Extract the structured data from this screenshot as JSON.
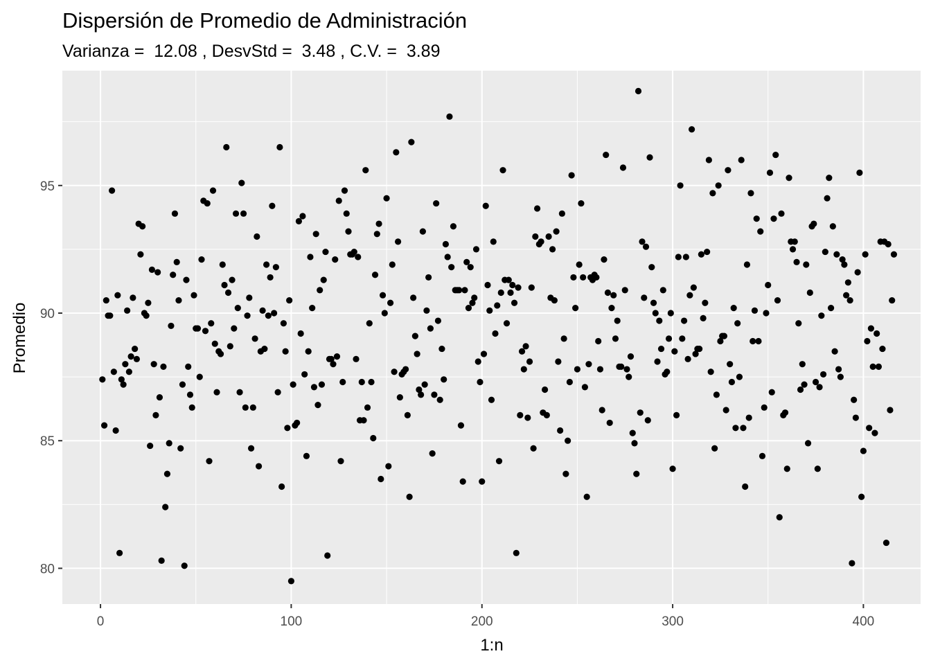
{
  "chart_data": {
    "type": "scatter",
    "title": "Dispersión de Promedio de Administración",
    "subtitle": "Varianza =  12.08 , DesvStd =  3.48 , C.V. =  3.89",
    "xlabel": "1:n",
    "ylabel": "Promedio",
    "xlim": [
      -20,
      430
    ],
    "ylim": [
      78.6,
      99.5
    ],
    "x_ticks": [
      0,
      100,
      200,
      300,
      400
    ],
    "y_ticks": [
      80,
      85,
      90,
      95
    ],
    "grid": true,
    "background": "#ebebeb",
    "grid_color": "#ffffff",
    "point_color": "#000000",
    "y": [
      87.4,
      85.6,
      90.5,
      89.9,
      89.9,
      94.8,
      87.7,
      85.4,
      90.7,
      80.6,
      87.4,
      87.2,
      88.0,
      90.1,
      87.7,
      88.3,
      90.6,
      88.6,
      88.2,
      93.5,
      92.3,
      93.4,
      90.0,
      89.9,
      90.4,
      84.8,
      91.7,
      88.0,
      86.0,
      91.6,
      86.7,
      80.3,
      87.9,
      82.4,
      83.7,
      84.9,
      89.5,
      91.5,
      93.9,
      92.0,
      90.5,
      84.7,
      87.2,
      80.1,
      91.3,
      87.9,
      86.8,
      86.3,
      90.7,
      89.4,
      89.4,
      87.5,
      92.1,
      94.4,
      89.3,
      94.3,
      84.2,
      89.6,
      94.8,
      88.8,
      86.9,
      88.5,
      88.4,
      91.9,
      91.1,
      96.5,
      90.8,
      88.7,
      91.3,
      89.4,
      93.9,
      90.2,
      86.9,
      95.1,
      93.9,
      86.3,
      89.9,
      90.6,
      84.7,
      86.3,
      89.0,
      93.0,
      84.0,
      88.5,
      90.1,
      88.6,
      91.9,
      89.9,
      91.4,
      94.2,
      90.0,
      91.8,
      86.9,
      96.5,
      83.2,
      89.6,
      88.5,
      85.5,
      90.5,
      79.5,
      87.2,
      85.6,
      85.7,
      93.6,
      89.2,
      93.8,
      87.6,
      84.4,
      88.5,
      92.2,
      90.2,
      87.1,
      93.1,
      86.4,
      90.9,
      87.2,
      91.3,
      92.4,
      80.5,
      88.2,
      88.2,
      88.0,
      92.1,
      88.3,
      94.4,
      84.2,
      87.3,
      94.8,
      93.9,
      93.2,
      92.3,
      92.3,
      92.4,
      88.2,
      92.2,
      85.8,
      87.3,
      85.8,
      95.6,
      86.3,
      89.6,
      87.3,
      85.1,
      91.5,
      93.1,
      93.5,
      83.5,
      90.7,
      90.0,
      94.5,
      84.0,
      90.4,
      91.9,
      87.7,
      96.3,
      92.8,
      86.7,
      87.6,
      87.7,
      87.8,
      86.0,
      82.8,
      96.7,
      90.6,
      89.1,
      88.4,
      87.0,
      86.8,
      93.2,
      87.2,
      90.1,
      91.4,
      89.4,
      84.5,
      86.8,
      94.3,
      89.7,
      86.6,
      88.6,
      87.4,
      92.7,
      92.2,
      97.7,
      91.8,
      93.4,
      90.9,
      90.9,
      90.9,
      85.6,
      83.4,
      90.9,
      92.0,
      90.2,
      91.8,
      90.4,
      90.6,
      92.5,
      88.1,
      87.3,
      83.4,
      88.4,
      94.2,
      91.1,
      90.1,
      86.6,
      92.8,
      89.2,
      90.3,
      84.2,
      90.8,
      95.6,
      91.3,
      89.6,
      91.3,
      90.8,
      91.1,
      90.4,
      80.6,
      91.0,
      86.0,
      88.5,
      87.8,
      88.7,
      85.9,
      88.1,
      91.0,
      84.7,
      93.0,
      94.1,
      92.7,
      92.8,
      86.1,
      87.0,
      86.0,
      93.0,
      90.6,
      92.5,
      90.5,
      93.2,
      88.1,
      85.4,
      93.9,
      89.0,
      83.7,
      85.0,
      87.3,
      95.4,
      91.4,
      90.2,
      87.8,
      91.9,
      94.3,
      91.4,
      87.1,
      82.8,
      88.0,
      91.4,
      91.3,
      91.5,
      91.4,
      88.9,
      87.8,
      86.2,
      92.1,
      96.2,
      90.8,
      85.7,
      90.2,
      90.7,
      89.0,
      89.7,
      87.9,
      87.9,
      95.7,
      90.9,
      87.8,
      87.5,
      88.3,
      85.3,
      84.9,
      83.7,
      98.7,
      86.1,
      92.8,
      90.6,
      92.6,
      85.8,
      96.1,
      91.8,
      90.4,
      90.0,
      88.1,
      89.7,
      88.6,
      90.9,
      87.6,
      87.7,
      89.0,
      90.0,
      83.9,
      88.5,
      86.0,
      92.2,
      95.0,
      89.0,
      89.7,
      92.2,
      88.2,
      90.7,
      97.2,
      91.0,
      88.4,
      88.6,
      88.6,
      92.3,
      89.8,
      90.4,
      92.4,
      96.0,
      87.7,
      94.7,
      84.7,
      86.8,
      95.0,
      88.9,
      89.1,
      89.1,
      86.2,
      95.6,
      88.0,
      87.3,
      90.2,
      85.5,
      89.6,
      87.5,
      96.0,
      85.5,
      83.2,
      91.9,
      85.9,
      94.7,
      88.9,
      90.1,
      93.7,
      88.9,
      93.2,
      84.4,
      86.3,
      90.0,
      91.1,
      95.5,
      86.9,
      93.7,
      96.2,
      90.5,
      82.0,
      93.9,
      86.0,
      86.1,
      83.9,
      95.3,
      92.8,
      92.5,
      92.8,
      92.0,
      89.6,
      87.0,
      88.0,
      87.2,
      91.9,
      84.9,
      90.8,
      93.4,
      93.5,
      87.3,
      83.9,
      87.1,
      89.9,
      87.6,
      92.4,
      94.5,
      95.3,
      90.2,
      93.4,
      88.5,
      92.3,
      87.8,
      87.5,
      92.1,
      91.9,
      90.7,
      91.2,
      90.5,
      80.2,
      86.6,
      85.9,
      91.6,
      95.5,
      82.8,
      84.6,
      92.3,
      88.9,
      85.5,
      89.4,
      87.9,
      85.3,
      89.2,
      87.9,
      92.8,
      88.6,
      92.8,
      81.0,
      92.7,
      86.2,
      90.5,
      92.3
    ]
  }
}
